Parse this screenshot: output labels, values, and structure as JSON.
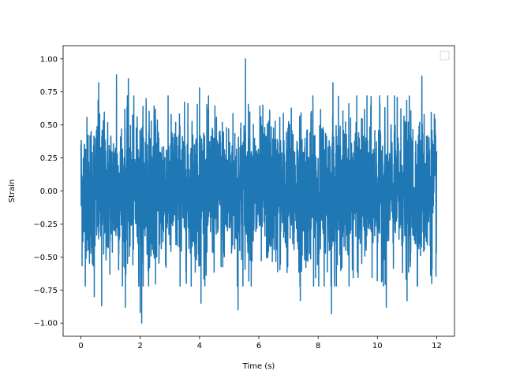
{
  "chart_data": {
    "type": "line",
    "title": "",
    "xlabel": "Time (s)",
    "ylabel": "Strain",
    "xlim": [
      -0.6,
      12.6
    ],
    "ylim": [
      -1.1,
      1.1
    ],
    "x_ticks": [
      0,
      2,
      4,
      6,
      8,
      10,
      12
    ],
    "x_tick_labels": [
      "0",
      "2",
      "4",
      "6",
      "8",
      "10",
      "12"
    ],
    "y_ticks": [
      -1.0,
      -0.75,
      -0.5,
      -0.25,
      0.0,
      0.25,
      0.5,
      0.75,
      1.0
    ],
    "y_tick_labels": [
      "−1.00",
      "−0.75",
      "−0.50",
      "−0.25",
      "0.00",
      "0.25",
      "0.50",
      "0.75",
      "1.00"
    ],
    "grid": false,
    "legend": {
      "placement": "top-right",
      "entries": []
    },
    "series": [
      {
        "color": "#1f77b4",
        "x_range": [
          0,
          12
        ],
        "y_min": -1.0,
        "y_max": 1.0,
        "typical_range": [
          -0.5,
          0.5
        ],
        "description_points": [
          {
            "x": 0.0,
            "y": 0.35
          },
          {
            "x": 0.15,
            "y": -0.5
          },
          {
            "x": 0.45,
            "y": -0.8
          },
          {
            "x": 0.6,
            "y": 0.82
          },
          {
            "x": 0.7,
            "y": -0.87
          },
          {
            "x": 1.2,
            "y": 0.88
          },
          {
            "x": 1.5,
            "y": -0.88
          },
          {
            "x": 1.6,
            "y": 0.85
          },
          {
            "x": 2.0,
            "y": -0.92
          },
          {
            "x": 2.05,
            "y": -1.0
          },
          {
            "x": 2.2,
            "y": 0.7
          },
          {
            "x": 4.0,
            "y": 0.78
          },
          {
            "x": 4.05,
            "y": -0.85
          },
          {
            "x": 5.55,
            "y": 1.0
          },
          {
            "x": 5.3,
            "y": -0.9
          },
          {
            "x": 7.4,
            "y": -0.83
          },
          {
            "x": 8.45,
            "y": -0.93
          },
          {
            "x": 8.5,
            "y": 0.82
          },
          {
            "x": 10.3,
            "y": -0.88
          },
          {
            "x": 11.0,
            "y": -0.83
          },
          {
            "x": 11.5,
            "y": 0.87
          },
          {
            "x": 12.0,
            "y": 0.3
          }
        ]
      }
    ]
  }
}
